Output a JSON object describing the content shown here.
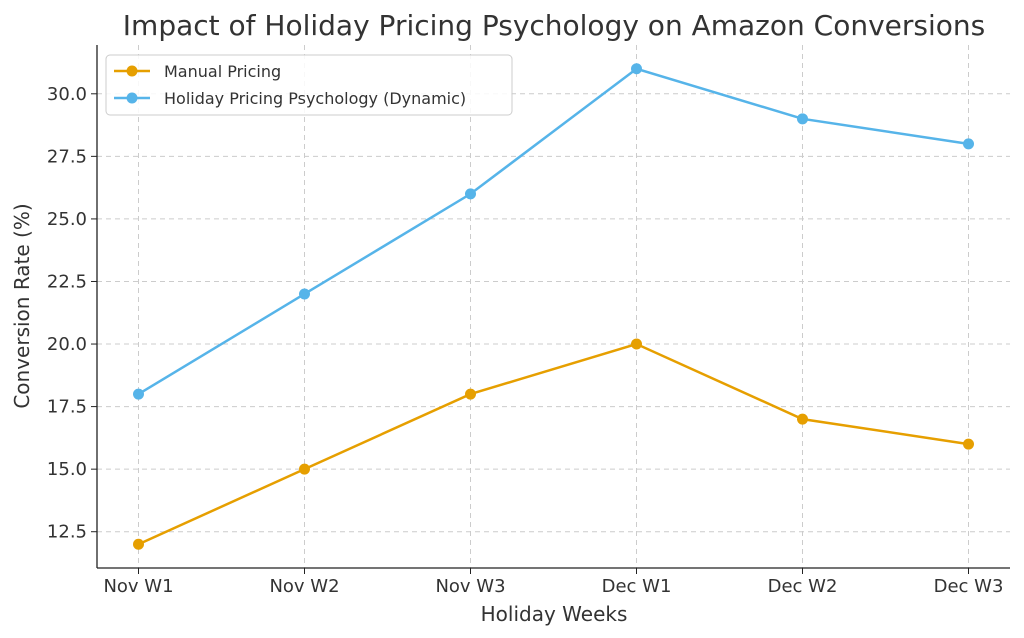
{
  "chart_data": {
    "type": "line",
    "title": "Impact of Holiday Pricing Psychology on Amazon Conversions",
    "xlabel": "Holiday Weeks",
    "ylabel": "Conversion Rate (%)",
    "categories": [
      "Nov W1",
      "Nov W2",
      "Nov W3",
      "Dec W1",
      "Dec W2",
      "Dec W3"
    ],
    "series": [
      {
        "name": "Manual Pricing",
        "values": [
          12,
          15,
          18,
          20,
          17,
          16
        ],
        "color": "#E69F00"
      },
      {
        "name": "Holiday Pricing Psychology (Dynamic)",
        "values": [
          18,
          22,
          26,
          31,
          29,
          28
        ],
        "color": "#56B4E9"
      }
    ],
    "yticks": [
      "12.5",
      "15.0",
      "17.5",
      "20.0",
      "22.5",
      "25.0",
      "27.5",
      "30.0"
    ],
    "ylim": [
      11.05,
      31.95
    ],
    "grid": true,
    "legend": "top-left",
    "markers": "circle"
  }
}
